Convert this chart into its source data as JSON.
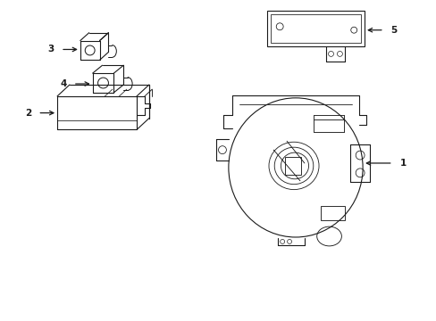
{
  "background_color": "#ffffff",
  "line_color": "#1a1a1a",
  "line_width": 0.8,
  "fig_width": 4.89,
  "fig_height": 3.6,
  "xlim": [
    0,
    4.89
  ],
  "ylim": [
    0,
    3.6
  ]
}
